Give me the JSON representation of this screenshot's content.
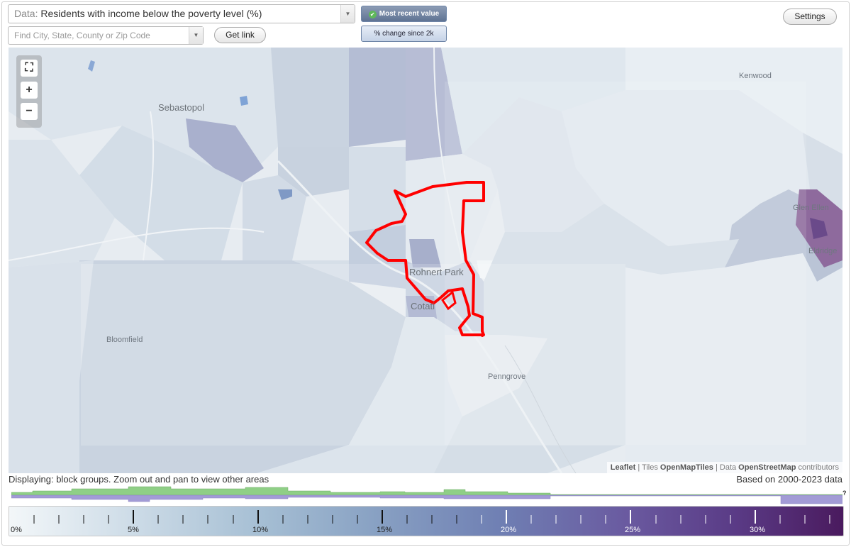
{
  "controls": {
    "data_prefix": "Data:",
    "data_value": "Residents with income below the poverty level (%)",
    "search_placeholder": "Find City, State, County or Zip Code",
    "get_link": "Get link",
    "toggle_recent": "Most recent value",
    "toggle_change": "% change since 2k",
    "settings": "Settings"
  },
  "map": {
    "places": {
      "sebastopol": "Sebastopol",
      "kenwood": "Kenwood",
      "rohnert_park": "Rohnert Park",
      "cotati": "Cotati",
      "bloomfield": "Bloomfield",
      "penngrove": "Penngrove",
      "glen_ellen": "Glen Ellen",
      "eldridge": "Eldridge"
    },
    "zoom": {
      "fit": "⛶",
      "in": "+",
      "out": "−"
    },
    "attribution": {
      "leaflet": "Leaflet",
      "sep1": " | Tiles ",
      "tiles": "OpenMapTiles",
      "sep2": " | Data ",
      "data": "OpenStreetMap",
      "suffix": " contributors"
    }
  },
  "footer": {
    "displaying": "Displaying: block groups. Zoom out and pan to view other areas",
    "based_on": "Based on 2000-2023 data",
    "help": "?"
  },
  "legend": {
    "labels": [
      "0%",
      "5%",
      "10%",
      "15%",
      "20%",
      "25%",
      "30%"
    ],
    "max_percent": 33.6
  },
  "colors": {
    "highlight_outline": "#ff0000",
    "hist_green": "#8fcf86",
    "hist_purple": "#a29bd6",
    "scale_low": "#f3f7f9",
    "scale_high": "#4a1a5e"
  }
}
